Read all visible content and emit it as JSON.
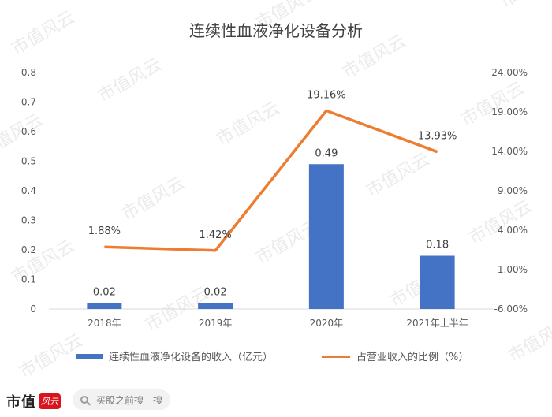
{
  "chart_data": {
    "type": "bar",
    "title": "连续性血液净化设备分析",
    "categories": [
      "2018年",
      "2019年",
      "2020年",
      "2021年上半年"
    ],
    "series": [
      {
        "name": "连续性血液净化设备的收入（亿元）",
        "type": "bar",
        "axis": "left",
        "color": "#4472c4",
        "values": [
          0.02,
          0.02,
          0.49,
          0.18
        ],
        "labels": [
          "0.02",
          "0.02",
          "0.49",
          "0.18"
        ]
      },
      {
        "name": "占营业收入的比例（%）",
        "type": "line",
        "axis": "right",
        "color": "#ed7d31",
        "values": [
          1.88,
          1.42,
          19.16,
          13.93
        ],
        "labels": [
          "1.88%",
          "1.42%",
          "19.16%",
          "13.93%"
        ]
      }
    ],
    "y_left": {
      "range": [
        0,
        0.8
      ],
      "ticks": [
        "0",
        "0.1",
        "0.2",
        "0.3",
        "0.4",
        "0.5",
        "0.6",
        "0.7",
        "0.8"
      ]
    },
    "y_right": {
      "range": [
        -6,
        24
      ],
      "ticks": [
        "-6.00%",
        "-1.00%",
        "4.00%",
        "9.00%",
        "14.00%",
        "19.00%",
        "24.00%"
      ]
    },
    "grid": false,
    "legend_position": "bottom"
  },
  "watermark": "市值风云",
  "footer": {
    "brand": "市值",
    "brand_logo_text": "风云",
    "search_placeholder": "买股之前搜一搜"
  }
}
